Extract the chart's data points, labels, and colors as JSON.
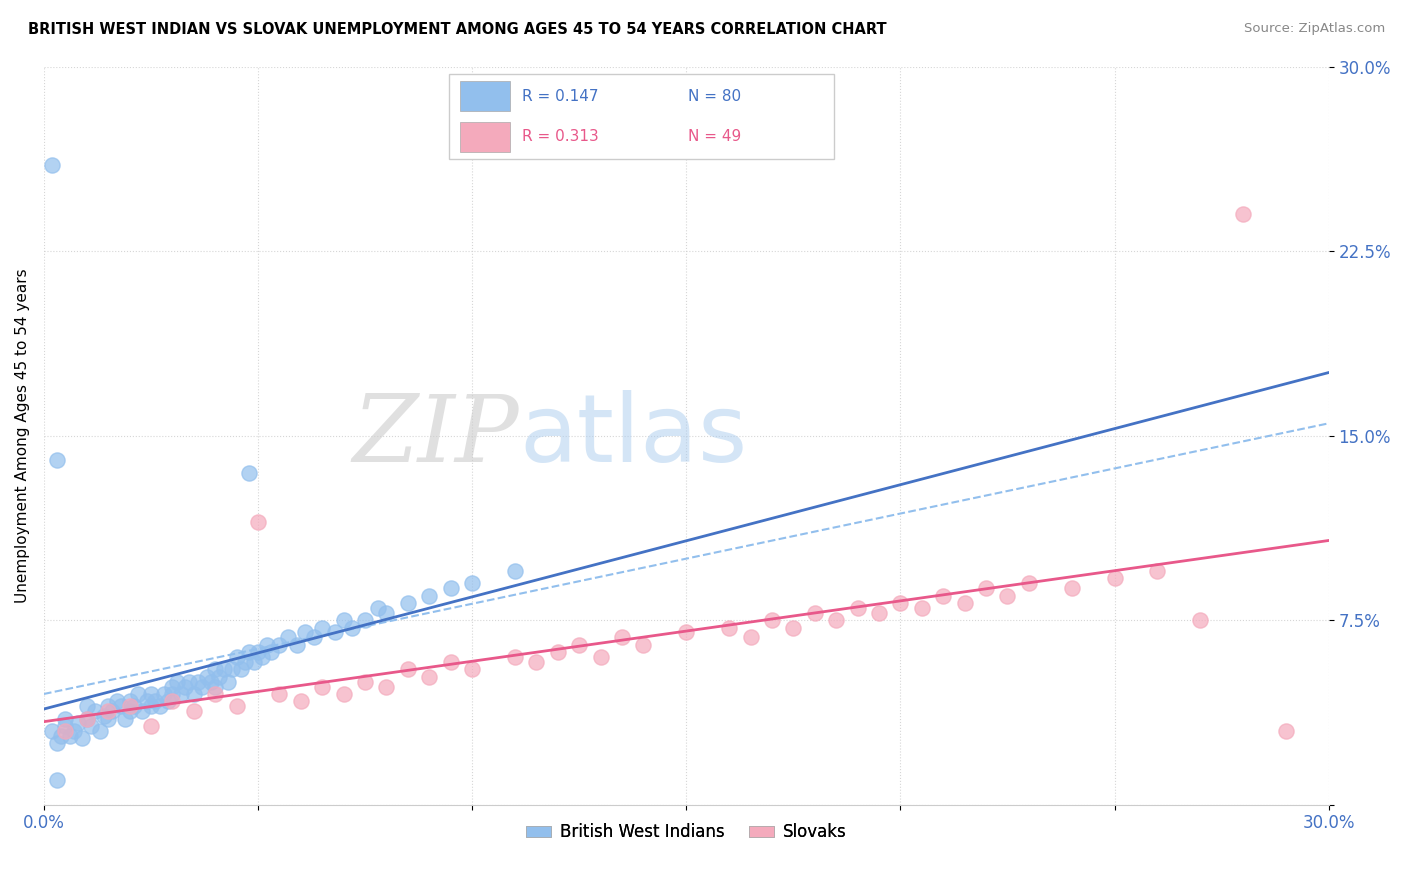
{
  "title": "BRITISH WEST INDIAN VS SLOVAK UNEMPLOYMENT AMONG AGES 45 TO 54 YEARS CORRELATION CHART",
  "source": "Source: ZipAtlas.com",
  "ylabel": "Unemployment Among Ages 45 to 54 years",
  "xlim": [
    0,
    0.3
  ],
  "ylim": [
    0,
    0.3
  ],
  "xticks": [
    0.0,
    0.05,
    0.1,
    0.15,
    0.2,
    0.25,
    0.3
  ],
  "yticks": [
    0.0,
    0.075,
    0.15,
    0.225,
    0.3
  ],
  "xticklabels": [
    "0.0%",
    "",
    "",
    "",
    "",
    "",
    "30.0%"
  ],
  "yticklabels": [
    "",
    "7.5%",
    "15.0%",
    "22.5%",
    "30.0%"
  ],
  "legend_r_blue": "R = 0.147",
  "legend_n_blue": "N = 80",
  "legend_r_pink": "R = 0.313",
  "legend_n_pink": "N = 49",
  "blue_color": "#92BFED",
  "pink_color": "#F4AABC",
  "blue_line_color": "#4472C4",
  "pink_line_color": "#E8588A",
  "dashed_line_color": "#92BFED",
  "bwi_x": [
    0.002,
    0.003,
    0.004,
    0.005,
    0.005,
    0.006,
    0.007,
    0.008,
    0.009,
    0.01,
    0.01,
    0.011,
    0.012,
    0.013,
    0.014,
    0.015,
    0.015,
    0.016,
    0.017,
    0.018,
    0.019,
    0.02,
    0.02,
    0.021,
    0.022,
    0.023,
    0.024,
    0.025,
    0.025,
    0.026,
    0.027,
    0.028,
    0.029,
    0.03,
    0.03,
    0.031,
    0.032,
    0.033,
    0.034,
    0.035,
    0.036,
    0.037,
    0.038,
    0.039,
    0.04,
    0.04,
    0.041,
    0.042,
    0.043,
    0.044,
    0.045,
    0.046,
    0.047,
    0.048,
    0.049,
    0.05,
    0.051,
    0.052,
    0.053,
    0.055,
    0.057,
    0.059,
    0.061,
    0.063,
    0.065,
    0.068,
    0.07,
    0.072,
    0.075,
    0.078,
    0.08,
    0.085,
    0.09,
    0.095,
    0.1,
    0.11,
    0.002,
    0.003,
    0.048,
    0.003
  ],
  "bwi_y": [
    0.03,
    0.025,
    0.028,
    0.032,
    0.035,
    0.028,
    0.03,
    0.033,
    0.027,
    0.035,
    0.04,
    0.032,
    0.038,
    0.03,
    0.036,
    0.04,
    0.035,
    0.038,
    0.042,
    0.04,
    0.035,
    0.042,
    0.038,
    0.04,
    0.045,
    0.038,
    0.042,
    0.04,
    0.045,
    0.042,
    0.04,
    0.045,
    0.042,
    0.048,
    0.045,
    0.05,
    0.045,
    0.048,
    0.05,
    0.045,
    0.05,
    0.048,
    0.052,
    0.05,
    0.055,
    0.048,
    0.052,
    0.055,
    0.05,
    0.055,
    0.06,
    0.055,
    0.058,
    0.062,
    0.058,
    0.062,
    0.06,
    0.065,
    0.062,
    0.065,
    0.068,
    0.065,
    0.07,
    0.068,
    0.072,
    0.07,
    0.075,
    0.072,
    0.075,
    0.08,
    0.078,
    0.082,
    0.085,
    0.088,
    0.09,
    0.095,
    0.26,
    0.14,
    0.135,
    0.01
  ],
  "slovak_x": [
    0.005,
    0.01,
    0.015,
    0.02,
    0.025,
    0.03,
    0.035,
    0.04,
    0.045,
    0.05,
    0.055,
    0.06,
    0.065,
    0.07,
    0.075,
    0.08,
    0.085,
    0.09,
    0.095,
    0.1,
    0.11,
    0.115,
    0.12,
    0.125,
    0.13,
    0.135,
    0.14,
    0.15,
    0.16,
    0.165,
    0.17,
    0.175,
    0.18,
    0.185,
    0.19,
    0.195,
    0.2,
    0.205,
    0.21,
    0.215,
    0.22,
    0.225,
    0.23,
    0.24,
    0.25,
    0.26,
    0.27,
    0.28,
    0.29
  ],
  "slovak_y": [
    0.03,
    0.035,
    0.038,
    0.04,
    0.032,
    0.042,
    0.038,
    0.045,
    0.04,
    0.115,
    0.045,
    0.042,
    0.048,
    0.045,
    0.05,
    0.048,
    0.055,
    0.052,
    0.058,
    0.055,
    0.06,
    0.058,
    0.062,
    0.065,
    0.06,
    0.068,
    0.065,
    0.07,
    0.072,
    0.068,
    0.075,
    0.072,
    0.078,
    0.075,
    0.08,
    0.078,
    0.082,
    0.08,
    0.085,
    0.082,
    0.088,
    0.085,
    0.09,
    0.088,
    0.092,
    0.095,
    0.075,
    0.24,
    0.03
  ]
}
